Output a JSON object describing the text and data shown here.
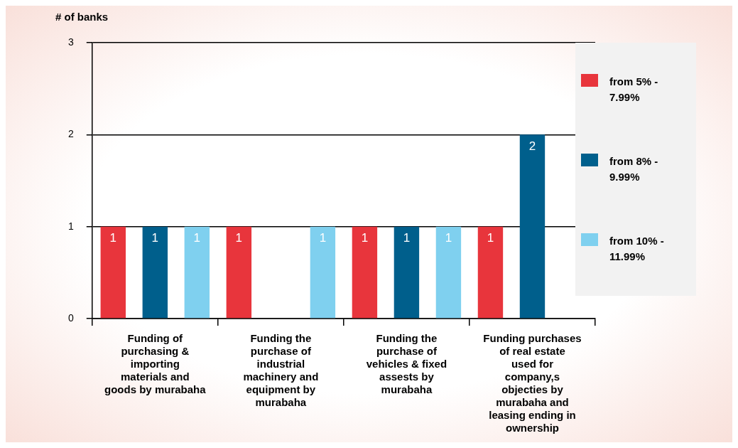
{
  "chart_data": {
    "type": "bar",
    "ylabel": "# of banks",
    "categories": [
      "Funding of purchasing & importing materials and goods by murabaha",
      "Funding the purchase of industrial machinery and equipment by murabaha",
      "Funding the purchase of vehicles & fixed assests by murabaha",
      "Funding purchases of real estate used for company,s objecties by murabaha and leasing ending in ownership"
    ],
    "series": [
      {
        "name": "from 5% - 7.99%",
        "color": "#e8353c",
        "values": [
          1,
          1,
          1,
          1
        ]
      },
      {
        "name": "from 8% - 9.99%",
        "color": "#005f8c",
        "values": [
          1,
          null,
          1,
          2
        ]
      },
      {
        "name": "from 10% - 11.99%",
        "color": "#7fd0ef",
        "values": [
          1,
          1,
          1,
          null
        ]
      }
    ],
    "ylim": [
      0,
      3
    ],
    "yticks": [
      0,
      1,
      2,
      3
    ],
    "grid": "y",
    "legend": "right",
    "data_labels": true
  }
}
